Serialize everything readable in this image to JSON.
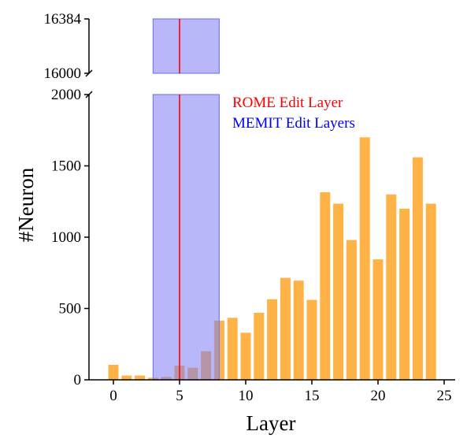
{
  "chart_data": {
    "type": "bar",
    "xlabel": "Layer",
    "ylabel": "#Neuron",
    "x": [
      0,
      1,
      2,
      3,
      4,
      5,
      6,
      7,
      8,
      9,
      10,
      11,
      12,
      13,
      14,
      15,
      16,
      17,
      18,
      19,
      20,
      21,
      22,
      23,
      24
    ],
    "values": [
      105,
      30,
      30,
      15,
      20,
      100,
      85,
      200,
      415,
      435,
      330,
      470,
      565,
      715,
      695,
      560,
      1315,
      1235,
      980,
      1700,
      845,
      1300,
      1200,
      1560,
      1235
    ],
    "bar_color": "#FFB347",
    "xlim": [
      -1,
      25.5
    ],
    "xticks": [
      0,
      5,
      10,
      15,
      20,
      25
    ],
    "ylim_lower": [
      0,
      2000
    ],
    "yticks_lower": [
      0,
      500,
      1000,
      1500,
      2000
    ],
    "ylim_upper": [
      16000,
      16384
    ],
    "yticks_upper": [
      16000,
      16384
    ],
    "broken_axis": true,
    "grid": false,
    "legend_placement": "top-right, inside plot",
    "annotations": [
      {
        "kind": "vline",
        "x": 5,
        "label": "ROME Edit Layer",
        "color": "#FF0000"
      },
      {
        "kind": "vspan",
        "x_from": 3,
        "x_to": 8,
        "label": "MEMIT Edit Layers",
        "color": "#0000FF",
        "fill": "#7B7BF5"
      }
    ]
  }
}
